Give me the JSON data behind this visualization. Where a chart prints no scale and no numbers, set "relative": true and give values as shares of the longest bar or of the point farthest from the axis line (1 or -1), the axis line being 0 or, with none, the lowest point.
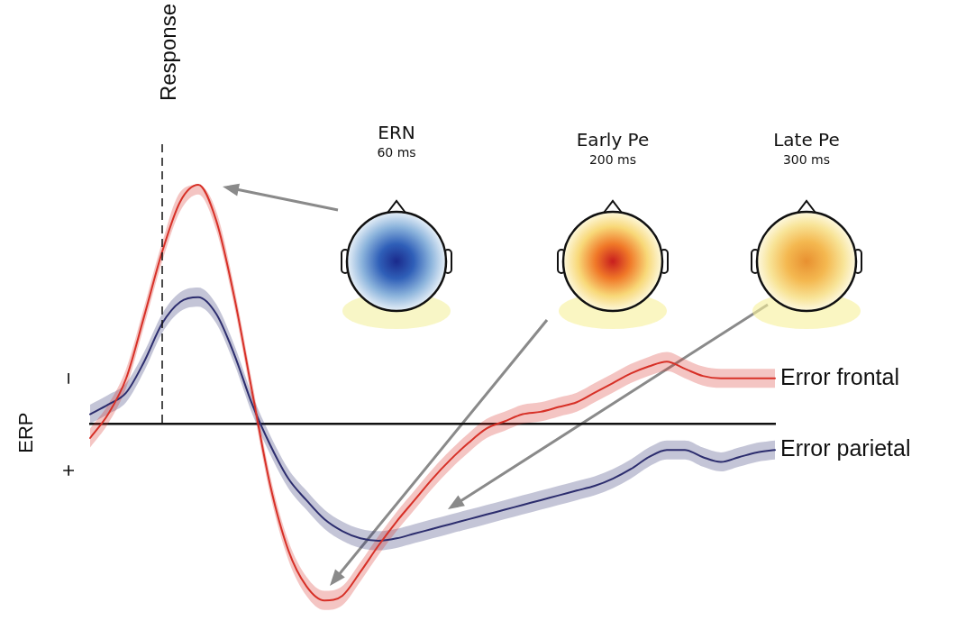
{
  "chart_data": {
    "type": "line",
    "relative": true,
    "ylabel": "ERP",
    "categories": [
      null,
      null,
      null,
      null,
      null,
      null,
      null,
      null,
      null,
      null,
      null,
      null,
      null,
      null,
      null,
      null,
      null,
      null,
      null,
      null,
      null,
      null,
      null,
      null,
      null,
      null,
      null,
      null,
      null,
      null,
      null,
      null,
      null,
      null,
      null,
      null,
      null,
      null,
      null
    ],
    "series": [
      {
        "name": "Error frontal",
        "color": "#d73027",
        "values": [
          -0.06,
          0.04,
          0.19,
          0.45,
          0.72,
          0.93,
          1,
          0.85,
          0.53,
          0.13,
          -0.26,
          -0.53,
          -0.68,
          -0.74,
          -0.72,
          -0.62,
          -0.51,
          -0.41,
          -0.32,
          -0.23,
          -0.15,
          -0.08,
          -0.02,
          0.01,
          0.04,
          0.05,
          0.07,
          0.09,
          0.13,
          0.17,
          0.21,
          0.24,
          0.26,
          0.23,
          0.2,
          0.19,
          0.19,
          0.19,
          0.19
        ],
        "upper": [
          -0.02,
          0.08,
          0.23,
          0.49,
          0.76,
          0.97,
          1,
          0.89,
          0.57,
          0.17,
          -0.22,
          -0.49,
          -0.64,
          -0.7,
          -0.68,
          -0.58,
          -0.47,
          -0.37,
          -0.28,
          -0.19,
          -0.11,
          -0.04,
          0.02,
          0.05,
          0.08,
          0.09,
          0.11,
          0.13,
          0.17,
          0.21,
          0.25,
          0.28,
          0.3,
          0.27,
          0.24,
          0.23,
          0.23,
          0.23,
          0.23
        ],
        "lower": [
          -0.1,
          0,
          0.15,
          0.41,
          0.68,
          0.89,
          0.96,
          0.81,
          0.49,
          0.09,
          -0.3,
          -0.57,
          -0.72,
          -0.78,
          -0.76,
          -0.66,
          -0.55,
          -0.45,
          -0.36,
          -0.27,
          -0.19,
          -0.12,
          -0.06,
          -0.03,
          0,
          0.01,
          0.03,
          0.05,
          0.09,
          0.13,
          0.17,
          0.2,
          0.22,
          0.19,
          0.16,
          0.15,
          0.15,
          0.15,
          0.15
        ]
      },
      {
        "name": "Error parietal",
        "color": "#2c2d6e",
        "values": [
          0.04,
          0.08,
          0.13,
          0.26,
          0.42,
          0.51,
          0.53,
          0.46,
          0.29,
          0.08,
          -0.09,
          -0.23,
          -0.32,
          -0.4,
          -0.45,
          -0.48,
          -0.49,
          -0.48,
          -0.46,
          -0.44,
          -0.42,
          -0.4,
          -0.38,
          -0.36,
          -0.34,
          -0.32,
          -0.3,
          -0.28,
          -0.26,
          -0.23,
          -0.19,
          -0.14,
          -0.11,
          -0.11,
          -0.14,
          -0.16,
          -0.14,
          -0.12,
          -0.11
        ],
        "upper": [
          0.08,
          0.12,
          0.17,
          0.3,
          0.46,
          0.55,
          0.57,
          0.5,
          0.33,
          0.12,
          -0.05,
          -0.19,
          -0.28,
          -0.36,
          -0.41,
          -0.44,
          -0.45,
          -0.44,
          -0.42,
          -0.4,
          -0.38,
          -0.36,
          -0.34,
          -0.32,
          -0.3,
          -0.28,
          -0.26,
          -0.24,
          -0.22,
          -0.19,
          -0.15,
          -0.1,
          -0.07,
          -0.07,
          -0.1,
          -0.12,
          -0.1,
          -0.08,
          -0.07
        ],
        "lower": [
          0,
          0.04,
          0.09,
          0.22,
          0.38,
          0.47,
          0.49,
          0.42,
          0.25,
          0.04,
          -0.13,
          -0.27,
          -0.36,
          -0.44,
          -0.49,
          -0.52,
          -0.53,
          -0.52,
          -0.5,
          -0.48,
          -0.46,
          -0.44,
          -0.42,
          -0.4,
          -0.38,
          -0.36,
          -0.34,
          -0.32,
          -0.3,
          -0.27,
          -0.23,
          -0.18,
          -0.15,
          -0.15,
          -0.18,
          -0.2,
          -0.18,
          -0.16,
          -0.15
        ]
      }
    ],
    "annotations": [
      "ERN",
      "60 ms",
      "Early Pe",
      "200 ms",
      "Late Pe",
      "300 ms",
      "−",
      "+",
      "Response"
    ]
  }
}
